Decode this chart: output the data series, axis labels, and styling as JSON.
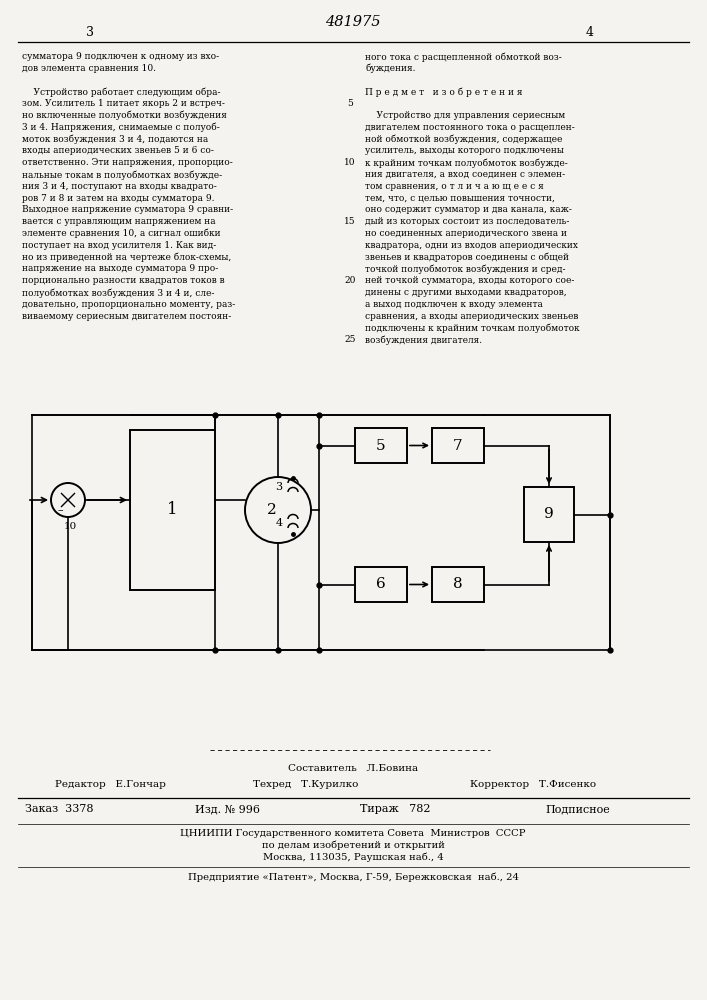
{
  "bg_color": "#f5f3ef",
  "page_number_center": "481975",
  "page_num_left": "3",
  "page_num_right": "4",
  "col_left_lines": [
    "сумматора 9 подключен к одному из вхо-",
    "дов элемента сравнения 10.",
    "",
    "    Устройство работает следующим обра-",
    "зом. Усилитель 1 питает якорь 2 и встреч-",
    "но включенные полуобмотки возбуждения",
    "3 и 4. Напряжения, снимаемые с полуоб-",
    "моток возбуждения 3 и 4, подаются на",
    "входы апериодических звеньев 5 и 6 со-",
    "ответственно. Эти напряжения, пропорцио-",
    "нальные токам в полуобмотках возбужде-",
    "ния 3 и 4, поступают на входы квадрато-",
    "ров 7 и 8 и затем на входы сумматора 9.",
    "Выходное напряжение сумматора 9 сравни-",
    "вается с управляющим напряжением на",
    "элементе сравнения 10, а сигнал ошибки",
    "поступает на вход усилителя 1. Как вид-",
    "но из приведенной на чертеже блок-схемы,",
    "напряжение на выходе сумматора 9 про-",
    "порционально разности квадратов токов в",
    "полуобмотках возбуждения 3 и 4 и, сле-",
    "довательно, пропорционально моменту, раз-",
    "виваемому сериесным двигателем постоян-"
  ],
  "col_right_lines": [
    "ного тока с расщепленной обмоткой воз-",
    "буждения.",
    "",
    "П р е д м е т   и з о б р е т е н и я",
    "",
    "    Устройство для управления сериесным",
    "двигателем постоянного тока о расщеплен-",
    "ной обмоткой возбуждения, содержащее",
    "усилитель, выходы которого подключены",
    "к крайним точкам полуобмоток возбужде-",
    "ния двигателя, а вход соединен с элемен-",
    "том сравнения, о т л и ч а ю щ е е с я",
    "тем, что, с целью повышения точности,",
    "оно содержит сумматор и два канала, каж-",
    "дый из которых состоит из последователь-",
    "но соединенных апериодического звена и",
    "квадратора, одни из входов апериодических",
    "звеньев и квадраторов соединены с общей",
    "точкой полуобмоток возбуждения и сред-",
    "ней точкой сумматора, входы которого сое-",
    "динены с другими выходами квадраторов,",
    "а выход подключен к входу элемента",
    "сравнения, а входы апериодических звеньев",
    "подключены к крайним точкам полуобмоток",
    "возбуждения двигателя."
  ],
  "line_numbers": [
    "5",
    "10",
    "15",
    "20",
    "25"
  ],
  "footer_sestavitel": "Составитель   Л.Бовина",
  "footer_redaktor": "Редактор   Е.Гончар",
  "footer_tehred": "Техред   Т.Курилко",
  "footer_korrektor": "Корректор   Т.Фисенко",
  "footer_zakaz": "Заказ  3378",
  "footer_izd": "Изд. № 996",
  "footer_tirazh": "Тираж   782",
  "footer_podpisnoe": "Подписное",
  "footer_org1": "ЦНИИПИ Государственного комитета Совета  Министров  СССР",
  "footer_org2": "по делам изобретений и открытий",
  "footer_org3": "Москва, 113035, Раушская наб., 4",
  "footer_predp": "Предприятие «Патент», Москва, Г-59, Бережковская  наб., 24"
}
